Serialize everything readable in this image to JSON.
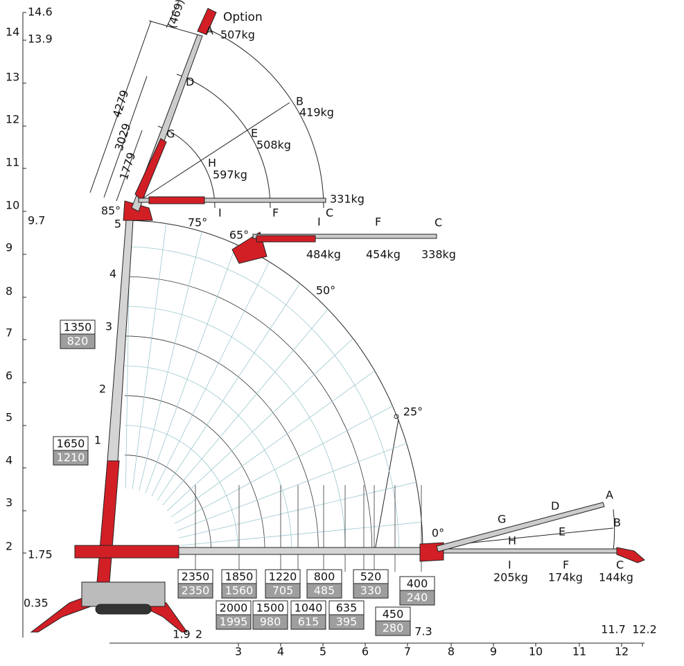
{
  "y_axis": {
    "labels": [
      14.6,
      14,
      13.9,
      13,
      12,
      11,
      10,
      9.7,
      9,
      8,
      7,
      6,
      5,
      4,
      3,
      2,
      1.75,
      0.35
    ]
  },
  "x_axis": {
    "labels": [
      1.9,
      2,
      3,
      4,
      5,
      6,
      7,
      7.3,
      8,
      9,
      10,
      11,
      11.7,
      12,
      12.2
    ]
  },
  "boom_sections": [
    1,
    2,
    3,
    4,
    5
  ],
  "angles": [
    "85°",
    "75°",
    "65°",
    "50°",
    "25°",
    "0°"
  ],
  "dimensions": [
    "(469)",
    4279,
    3029,
    1779
  ],
  "upper_jib": {
    "option": "Option",
    "letters": [
      "A",
      "B",
      "C",
      "D",
      "E",
      "F",
      "G",
      "H",
      "I"
    ],
    "loads": [
      "507kg",
      "419kg",
      "331kg",
      "508kg",
      "597kg"
    ]
  },
  "mid_jib": {
    "letters": [
      "I",
      "F",
      "C"
    ],
    "loads": [
      "484kg",
      "454kg",
      "338kg"
    ]
  },
  "horizontal_jib": {
    "letters": [
      "A",
      "B",
      "C",
      "D",
      "E",
      "F",
      "G",
      "H",
      "I"
    ],
    "loads": [
      "205kg",
      "174kg",
      "144kg"
    ]
  },
  "load_tables": [
    {
      "top": 1350,
      "bottom": 820
    },
    {
      "top": 1650,
      "bottom": 1210
    },
    {
      "top": 2350,
      "bottom": 2350
    },
    {
      "top": 1850,
      "bottom": 1560
    },
    {
      "top": 1220,
      "bottom": 705
    },
    {
      "top": 800,
      "bottom": 485
    },
    {
      "top": 520,
      "bottom": 330
    },
    {
      "top": 400,
      "bottom": 240
    },
    {
      "top": 2000,
      "bottom": 1995
    },
    {
      "top": 1500,
      "bottom": 980
    },
    {
      "top": 1040,
      "bottom": 615
    },
    {
      "top": 635,
      "bottom": 395
    },
    {
      "top": 450,
      "bottom": 280
    }
  ]
}
